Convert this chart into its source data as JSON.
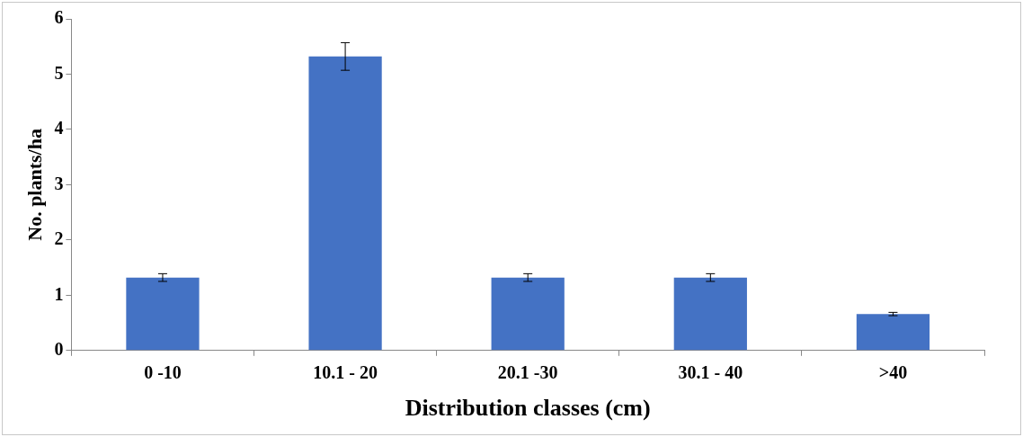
{
  "chart_data": {
    "type": "bar",
    "xlabel": "Distribution classes (cm)",
    "ylabel": "No. plants/ha",
    "categories": [
      "0 -10",
      "10.1 - 20",
      "20.1 -30",
      "30.1 - 40",
      ">40"
    ],
    "values": [
      1.32,
      5.32,
      1.32,
      1.32,
      0.66
    ],
    "errors": [
      0.07,
      0.25,
      0.07,
      0.07,
      0.03
    ],
    "color": "#4472c4",
    "ylim": [
      0,
      6
    ],
    "yticks": [
      0,
      1,
      2,
      3,
      4,
      5,
      6
    ],
    "grid": false
  }
}
